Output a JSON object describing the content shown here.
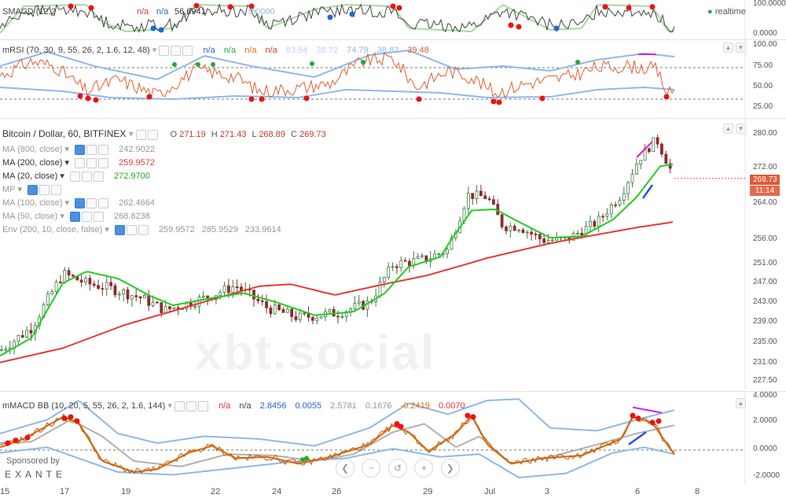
{
  "colors": {
    "up": "#2e8b57",
    "down": "#a33",
    "ma200": "#e53935",
    "ma20": "#22cc22",
    "rsi": "#e06030",
    "band": "#8fb8e8",
    "macd": "#e07010",
    "signal": "#b0b0b0",
    "dot_red": "#ee1111",
    "dot_blue": "#2266dd",
    "dot_green": "#22aa33"
  },
  "top_pane": {
    "title": "SMACD (12,2",
    "na1": "n/a",
    "na2": "n/a",
    "value": "56.6941",
    "zero": "0.0000",
    "realtime": "realtime",
    "ticks": [
      "100.0000",
      "0.0000"
    ]
  },
  "rsi_pane": {
    "title": "mRSI (70, 30, 9, 55, 26, 2, 1.6, 12, 48)",
    "na": [
      "n/a",
      "n/a",
      "n/a",
      "n/a"
    ],
    "values": [
      "83.54",
      "38.72",
      "74.79",
      "38.82",
      "39.48"
    ],
    "ticks": [
      "100.00",
      "75.00",
      "50.00",
      "25.00"
    ]
  },
  "main_pane": {
    "title": "Bitcoin / Dollar, 60, BITFINEX",
    "ohlc": {
      "o_label": "O",
      "o": "271.19",
      "h_label": "H",
      "h": "271.43",
      "l_label": "L",
      "l": "268.89",
      "c_label": "C",
      "c": "269.73"
    },
    "legend": [
      {
        "name": "MA (800, close)",
        "value": "242.9022"
      },
      {
        "name": "MA (200, close)",
        "value": "259.9572"
      },
      {
        "name": "MA (20, close)",
        "value": "272.9700"
      },
      {
        "name": "MP",
        "value": ""
      },
      {
        "name": "MA (100, close)",
        "value": "262.4664"
      },
      {
        "name": "MA (50, close)",
        "value": "268.8238"
      },
      {
        "name": "Env (200, 10, close, false)",
        "value": "259.9572",
        "value2": "285.9529",
        "value3": "233.9614"
      }
    ],
    "price_label": "269.73",
    "time_label": "11:14",
    "ticks": [
      "280.00",
      "272.00",
      "264.00",
      "256.00",
      "251.00",
      "247.00",
      "243.00",
      "239.00",
      "235.00",
      "231.00",
      "227.50"
    ],
    "watermark": "xbt.social"
  },
  "macd_pane": {
    "title": "mMACD BB (10, 20, 5, 55, 26, 2, 1.6, 144)",
    "na": [
      "n/a",
      "n/a"
    ],
    "values": [
      "2.8456",
      "0.0055",
      "2.5781",
      "0.1676",
      "-0.2419",
      "0.0070"
    ],
    "ticks": [
      "4.0000",
      "2.0000",
      "0.0000",
      "-2.0000"
    ]
  },
  "sponsor": {
    "label": "Sponsored by",
    "brand": "EXANTE"
  },
  "x_axis": [
    "15",
    "17",
    "19",
    "22",
    "24",
    "26",
    "29",
    "Jul",
    "3",
    "6",
    "8"
  ],
  "chart_data": {
    "type": "line",
    "title": "Bitcoin / Dollar, 60, BITFINEX",
    "x_ticks": [
      "15",
      "17",
      "19",
      "22",
      "24",
      "26",
      "29",
      "Jul",
      "3",
      "6",
      "8"
    ],
    "ylim": [
      227.5,
      280
    ],
    "series": [
      {
        "name": "MA (200, close)",
        "x": [
          "15",
          "17",
          "19",
          "22",
          "24",
          "26",
          "29",
          "Jul",
          "3",
          "6"
        ],
        "values": [
          231.5,
          236,
          239.5,
          243.8,
          246.6,
          244.5,
          248,
          252,
          255.5,
          259.9
        ]
      },
      {
        "name": "MA (20, close)",
        "x": [
          "15",
          "17",
          "19",
          "22",
          "24",
          "26",
          "29",
          "Jul",
          "3",
          "6"
        ],
        "values": [
          233.5,
          248,
          244.5,
          243.8,
          240,
          240,
          253,
          261.5,
          257,
          272.97
        ]
      }
    ],
    "close": [
      233.5,
      249,
      243,
      244,
      240,
      241,
      252,
      264,
      256,
      269.73
    ]
  }
}
